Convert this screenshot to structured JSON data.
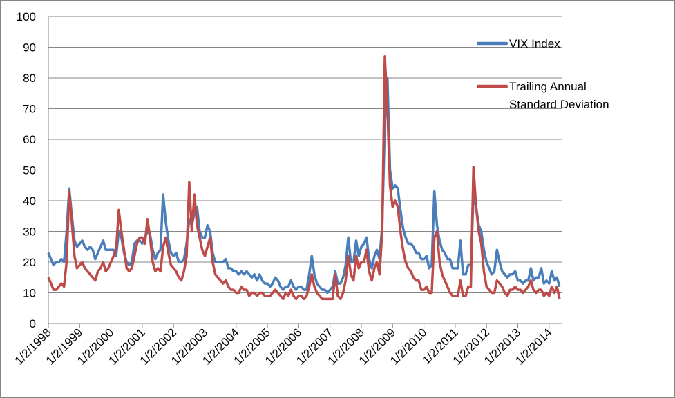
{
  "chart_data": {
    "type": "line",
    "title": "",
    "xlabel": "",
    "ylabel": "",
    "ylim": [
      0,
      100
    ],
    "yticks": [
      "0",
      "10",
      "20",
      "30",
      "40",
      "50",
      "60",
      "70",
      "80",
      "90",
      "100"
    ],
    "xticks": [
      "1/2/1998",
      "1/2/1999",
      "1/2/2000",
      "1/2/2001",
      "1/2/2002",
      "1/2/2003",
      "1/2/2004",
      "1/2/2005",
      "1/2/2006",
      "1/2/2007",
      "1/2/2008",
      "1/2/2009",
      "1/2/2010",
      "1/2/2011",
      "1/2/2012",
      "1/2/2013",
      "1/2/2014"
    ],
    "grid": "horizontal",
    "legend_position": "right",
    "x": [
      "1998-01",
      "1998-02",
      "1998-03",
      "1998-04",
      "1998-05",
      "1998-06",
      "1998-07",
      "1998-08",
      "1998-09",
      "1998-10",
      "1998-11",
      "1998-12",
      "1999-01",
      "1999-02",
      "1999-03",
      "1999-04",
      "1999-05",
      "1999-06",
      "1999-07",
      "1999-08",
      "1999-09",
      "1999-10",
      "1999-11",
      "1999-12",
      "2000-01",
      "2000-02",
      "2000-03",
      "2000-04",
      "2000-05",
      "2000-06",
      "2000-07",
      "2000-08",
      "2000-09",
      "2000-10",
      "2000-11",
      "2000-12",
      "2001-01",
      "2001-02",
      "2001-03",
      "2001-04",
      "2001-05",
      "2001-06",
      "2001-07",
      "2001-08",
      "2001-09",
      "2001-10",
      "2001-11",
      "2001-12",
      "2002-01",
      "2002-02",
      "2002-03",
      "2002-04",
      "2002-05",
      "2002-06",
      "2002-07",
      "2002-08",
      "2002-09",
      "2002-10",
      "2002-11",
      "2002-12",
      "2003-01",
      "2003-02",
      "2003-03",
      "2003-04",
      "2003-05",
      "2003-06",
      "2003-07",
      "2003-08",
      "2003-09",
      "2003-10",
      "2003-11",
      "2003-12",
      "2004-01",
      "2004-02",
      "2004-03",
      "2004-04",
      "2004-05",
      "2004-06",
      "2004-07",
      "2004-08",
      "2004-09",
      "2004-10",
      "2004-11",
      "2004-12",
      "2005-01",
      "2005-02",
      "2005-03",
      "2005-04",
      "2005-05",
      "2005-06",
      "2005-07",
      "2005-08",
      "2005-09",
      "2005-10",
      "2005-11",
      "2005-12",
      "2006-01",
      "2006-02",
      "2006-03",
      "2006-04",
      "2006-05",
      "2006-06",
      "2006-07",
      "2006-08",
      "2006-09",
      "2006-10",
      "2006-11",
      "2006-12",
      "2007-01",
      "2007-02",
      "2007-03",
      "2007-04",
      "2007-05",
      "2007-06",
      "2007-07",
      "2007-08",
      "2007-09",
      "2007-10",
      "2007-11",
      "2007-12",
      "2008-01",
      "2008-02",
      "2008-03",
      "2008-04",
      "2008-05",
      "2008-06",
      "2008-07",
      "2008-08",
      "2008-09",
      "2008-10",
      "2008-11",
      "2008-12",
      "2009-01",
      "2009-02",
      "2009-03",
      "2009-04",
      "2009-05",
      "2009-06",
      "2009-07",
      "2009-08",
      "2009-09",
      "2009-10",
      "2009-11",
      "2009-12",
      "2010-01",
      "2010-02",
      "2010-03",
      "2010-04",
      "2010-05",
      "2010-06",
      "2010-07",
      "2010-08",
      "2010-09",
      "2010-10",
      "2010-11",
      "2010-12",
      "2011-01",
      "2011-02",
      "2011-03",
      "2011-04",
      "2011-05",
      "2011-06",
      "2011-07",
      "2011-08",
      "2011-09",
      "2011-10",
      "2011-11",
      "2011-12",
      "2012-01",
      "2012-02",
      "2012-03",
      "2012-04",
      "2012-05",
      "2012-06",
      "2012-07",
      "2012-08",
      "2012-09",
      "2012-10",
      "2012-11",
      "2012-12",
      "2013-01",
      "2013-02",
      "2013-03",
      "2013-04",
      "2013-05",
      "2013-06",
      "2013-07",
      "2013-08",
      "2013-09",
      "2013-10",
      "2013-11",
      "2013-12",
      "2014-01",
      "2014-02",
      "2014-03",
      "2014-04",
      "2014-05"
    ],
    "series": [
      {
        "name": "VIX Index",
        "color": "#4a7ebb",
        "values": [
          23,
          21,
          19,
          20,
          20,
          21,
          20,
          30,
          44,
          35,
          27,
          25,
          26,
          27,
          25,
          24,
          25,
          24,
          21,
          23,
          25,
          27,
          24,
          24,
          24,
          24,
          22,
          30,
          28,
          23,
          20,
          19,
          20,
          26,
          27,
          27,
          26,
          28,
          30,
          29,
          24,
          21,
          23,
          24,
          42,
          33,
          27,
          23,
          22,
          23,
          20,
          20,
          21,
          26,
          34,
          32,
          36,
          38,
          30,
          28,
          28,
          32,
          30,
          23,
          20,
          20,
          20,
          20,
          21,
          18,
          18,
          17,
          17,
          16,
          17,
          16,
          17,
          16,
          15,
          16,
          14,
          16,
          14,
          13,
          13,
          12,
          13,
          15,
          14,
          12,
          11,
          12,
          12,
          14,
          12,
          11,
          12,
          12,
          11,
          11,
          16,
          22,
          16,
          13,
          12,
          11,
          11,
          10,
          11,
          12,
          17,
          13,
          13,
          15,
          19,
          28,
          20,
          20,
          27,
          22,
          25,
          26,
          28,
          21,
          18,
          22,
          24,
          21,
          32,
          65,
          80,
          50,
          44,
          45,
          44,
          37,
          31,
          28,
          26,
          26,
          25,
          23,
          23,
          21,
          21,
          22,
          18,
          19,
          43,
          32,
          27,
          24,
          23,
          21,
          21,
          18,
          18,
          18,
          27,
          16,
          16,
          19,
          19,
          42,
          38,
          32,
          30,
          24,
          20,
          18,
          16,
          17,
          24,
          20,
          17,
          16,
          15,
          16,
          16,
          17,
          14,
          14,
          13,
          14,
          14,
          18,
          14,
          15,
          15,
          18,
          13,
          14,
          13,
          17,
          14,
          15,
          12
        ]
      },
      {
        "name": "Trailing Annual Standard Deviation",
        "color": "#be4b48",
        "values": [
          15,
          13,
          11,
          11,
          12,
          13,
          12,
          20,
          43,
          33,
          22,
          18,
          19,
          20,
          18,
          17,
          16,
          15,
          14,
          17,
          18,
          20,
          17,
          18,
          20,
          22,
          24,
          37,
          30,
          24,
          18,
          17,
          18,
          22,
          26,
          28,
          28,
          26,
          34,
          28,
          20,
          17,
          18,
          17,
          25,
          28,
          23,
          19,
          18,
          17,
          15,
          14,
          17,
          22,
          46,
          30,
          42,
          32,
          28,
          24,
          22,
          25,
          28,
          20,
          16,
          15,
          14,
          13,
          14,
          12,
          11,
          11,
          10,
          10,
          12,
          11,
          11,
          9,
          10,
          10,
          9,
          10,
          10,
          9,
          9,
          9,
          10,
          11,
          10,
          9,
          8,
          10,
          9,
          11,
          9,
          8,
          9,
          9,
          8,
          9,
          12,
          16,
          12,
          10,
          9,
          8,
          8,
          8,
          8,
          8,
          16,
          9,
          8,
          10,
          14,
          22,
          16,
          14,
          22,
          18,
          20,
          20,
          24,
          17,
          14,
          18,
          20,
          16,
          30,
          87,
          70,
          45,
          38,
          40,
          38,
          30,
          24,
          20,
          18,
          17,
          15,
          14,
          14,
          11,
          11,
          12,
          10,
          10,
          28,
          30,
          20,
          16,
          14,
          12,
          10,
          9,
          9,
          9,
          14,
          9,
          9,
          12,
          12,
          51,
          38,
          30,
          26,
          17,
          12,
          11,
          10,
          10,
          14,
          13,
          12,
          10,
          9,
          11,
          11,
          12,
          11,
          11,
          10,
          11,
          12,
          14,
          11,
          10,
          11,
          11,
          9,
          10,
          9,
          12,
          10,
          12,
          8
        ]
      }
    ]
  },
  "legend": {
    "vix_label": "VIX Index",
    "std_label_line1": "Trailing Annual",
    "std_label_line2": "Standard Deviation"
  }
}
